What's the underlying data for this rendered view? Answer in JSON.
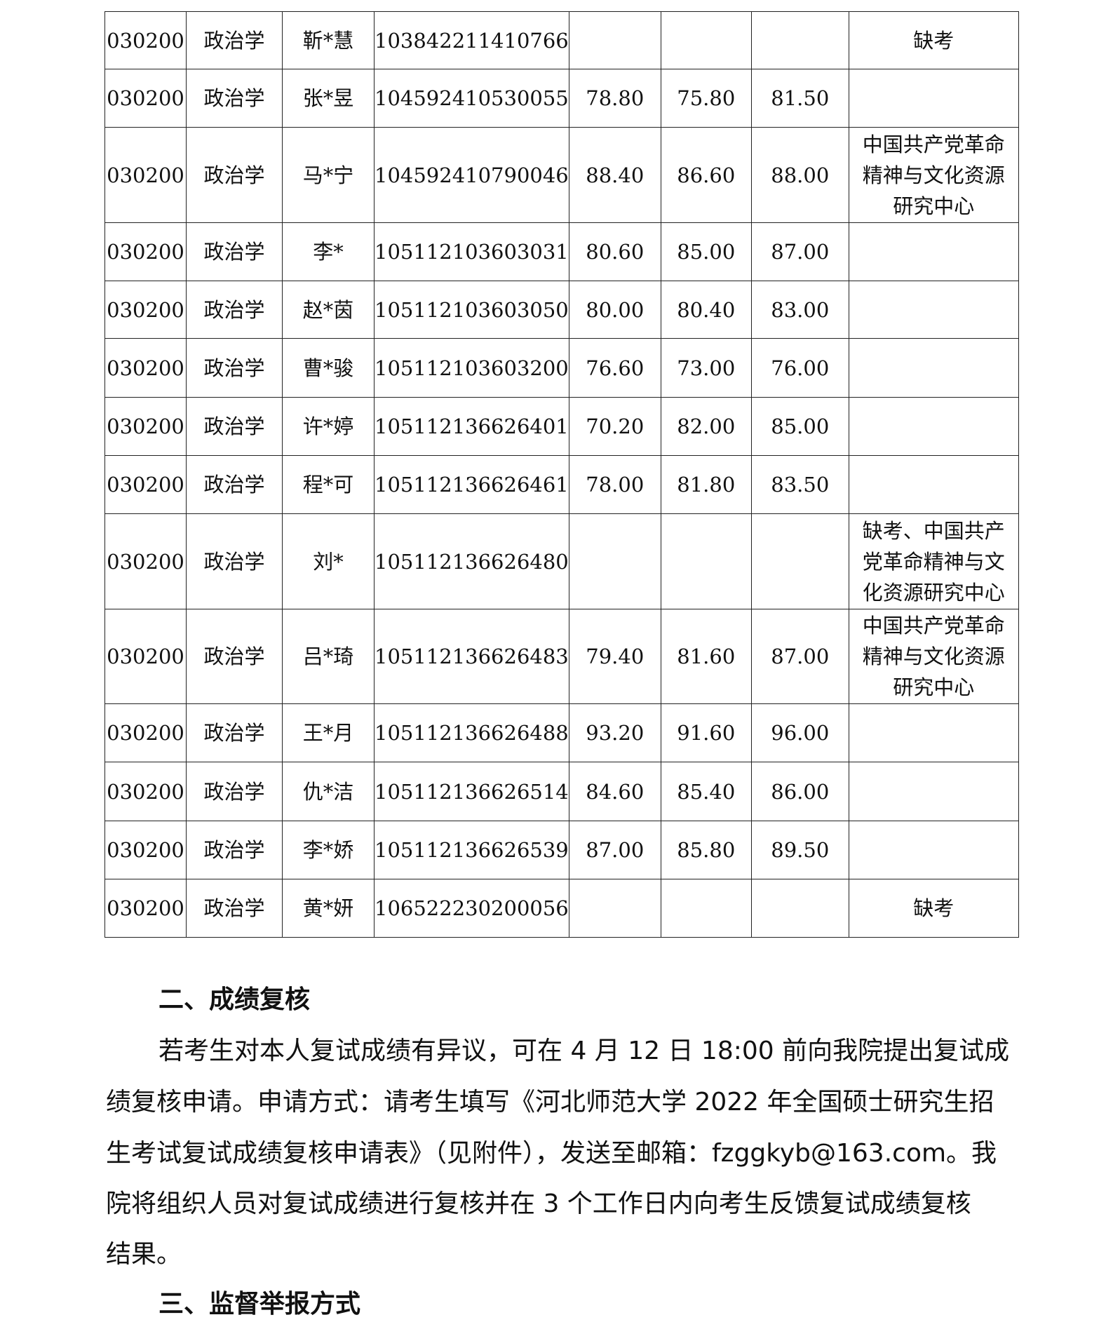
{
  "table": {
    "rows": [
      {
        "code": "030200",
        "major": "政治学",
        "name": "靳*慧",
        "id": "103842211410766",
        "s1": "",
        "s2": "",
        "s3": "",
        "remark": "缺考"
      },
      {
        "code": "030200",
        "major": "政治学",
        "name": "张*昱",
        "id": "104592410530055",
        "s1": "78.80",
        "s2": "75.80",
        "s3": "81.50",
        "remark": ""
      },
      {
        "code": "030200",
        "major": "政治学",
        "name": "马*宁",
        "id": "104592410790046",
        "s1": "88.40",
        "s2": "86.60",
        "s3": "88.00",
        "remark": "中国共产党革命精神与文化资源研究中心"
      },
      {
        "code": "030200",
        "major": "政治学",
        "name": "李*",
        "id": "105112103603031",
        "s1": "80.60",
        "s2": "85.00",
        "s3": "87.00",
        "remark": ""
      },
      {
        "code": "030200",
        "major": "政治学",
        "name": "赵*茵",
        "id": "105112103603050",
        "s1": "80.00",
        "s2": "80.40",
        "s3": "83.00",
        "remark": ""
      },
      {
        "code": "030200",
        "major": "政治学",
        "name": "曹*骏",
        "id": "105112103603200",
        "s1": "76.60",
        "s2": "73.00",
        "s3": "76.00",
        "remark": ""
      },
      {
        "code": "030200",
        "major": "政治学",
        "name": "许*婷",
        "id": "105112136626401",
        "s1": "70.20",
        "s2": "82.00",
        "s3": "85.00",
        "remark": ""
      },
      {
        "code": "030200",
        "major": "政治学",
        "name": "程*可",
        "id": "105112136626461",
        "s1": "78.00",
        "s2": "81.80",
        "s3": "83.50",
        "remark": ""
      },
      {
        "code": "030200",
        "major": "政治学",
        "name": "刘*",
        "id": "105112136626480",
        "s1": "",
        "s2": "",
        "s3": "",
        "remark": "缺考、中国共产党革命精神与文化资源研究中心"
      },
      {
        "code": "030200",
        "major": "政治学",
        "name": "吕*琦",
        "id": "105112136626483",
        "s1": "79.40",
        "s2": "81.60",
        "s3": "87.00",
        "remark": "中国共产党革命精神与文化资源研究中心"
      },
      {
        "code": "030200",
        "major": "政治学",
        "name": "王*月",
        "id": "105112136626488",
        "s1": "93.20",
        "s2": "91.60",
        "s3": "96.00",
        "remark": ""
      },
      {
        "code": "030200",
        "major": "政治学",
        "name": "仇*洁",
        "id": "105112136626514",
        "s1": "84.60",
        "s2": "85.40",
        "s3": "86.00",
        "remark": ""
      },
      {
        "code": "030200",
        "major": "政治学",
        "name": "李*娇",
        "id": "105112136626539",
        "s1": "87.00",
        "s2": "85.80",
        "s3": "89.50",
        "remark": ""
      },
      {
        "code": "030200",
        "major": "政治学",
        "name": "黄*妍",
        "id": "106522230200056",
        "s1": "",
        "s2": "",
        "s3": "",
        "remark": "缺考"
      }
    ]
  },
  "section2": {
    "heading": "二、成绩复核",
    "lines": [
      "若考生对本人复试成绩有异议，可在 4 月 12 日 18:00 前向我院提出复试成",
      "绩复核申请。申请方式：请考生填写《河北师范大学 2022 年全国硕士研究生招",
      "生考试复试成绩复核申请表》（见附件），发送至邮箱：fzggkyb@163.com。我",
      "院将组织人员对复试成绩进行复核并在 3 个工作日内向考生反馈复试成绩复核",
      "结果。"
    ]
  },
  "section3": {
    "heading": "三、监督举报方式"
  }
}
